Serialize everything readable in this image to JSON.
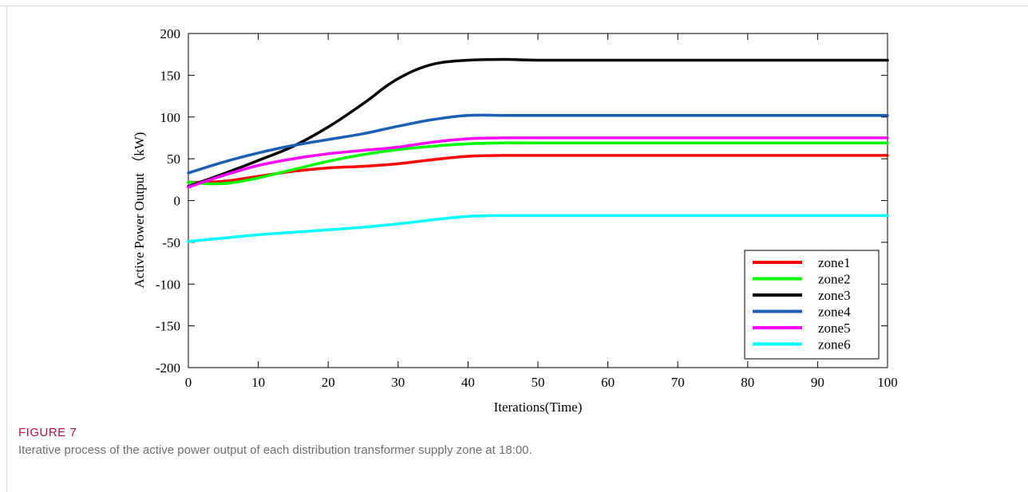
{
  "figure": {
    "label": "FIGURE 7",
    "caption": "Iterative process of the active power output of each distribution transformer supply zone at 18:00."
  },
  "chart_data": {
    "type": "line",
    "xlabel": "Iterations(Time)",
    "ylabel": "Active Power Output （kW)",
    "xlim": [
      0,
      100
    ],
    "ylim": [
      -200,
      200
    ],
    "xticks": [
      0,
      10,
      20,
      30,
      40,
      50,
      60,
      70,
      80,
      90,
      100
    ],
    "yticks": [
      200,
      150,
      100,
      50,
      0,
      -50,
      -100,
      -150,
      -200
    ],
    "grid": false,
    "legend_position": "bottom-right",
    "series": [
      {
        "name": "zone1",
        "color": "#ff0000",
        "x": [
          0,
          3,
          6,
          10,
          15,
          20,
          25,
          30,
          35,
          40,
          45,
          50,
          60,
          80,
          100
        ],
        "y": [
          22,
          22,
          24,
          29,
          35,
          39,
          41,
          44,
          49,
          53,
          54,
          54,
          54,
          54,
          54
        ]
      },
      {
        "name": "zone2",
        "color": "#00ff00",
        "x": [
          0,
          3,
          6,
          10,
          15,
          20,
          25,
          30,
          35,
          40,
          45,
          50,
          60,
          80,
          100
        ],
        "y": [
          22,
          20,
          21,
          27,
          37,
          47,
          55,
          61,
          65,
          68,
          69,
          69,
          69,
          69,
          69
        ]
      },
      {
        "name": "zone3",
        "color": "#000000",
        "x": [
          0,
          5,
          10,
          15,
          20,
          25,
          28,
          30,
          33,
          36,
          40,
          45,
          50,
          60,
          80,
          100
        ],
        "y": [
          17,
          32,
          48,
          65,
          88,
          116,
          135,
          146,
          158,
          165,
          168,
          169,
          168,
          168,
          168,
          168
        ]
      },
      {
        "name": "zone4",
        "color": "#1a5fb4",
        "x": [
          0,
          5,
          10,
          15,
          20,
          25,
          30,
          35,
          40,
          45,
          50,
          60,
          80,
          100
        ],
        "y": [
          33,
          46,
          57,
          66,
          73,
          80,
          89,
          97,
          102,
          102,
          102,
          102,
          102,
          102
        ]
      },
      {
        "name": "zone5",
        "color": "#ff00ff",
        "x": [
          0,
          5,
          10,
          15,
          20,
          25,
          30,
          35,
          40,
          45,
          50,
          60,
          80,
          100
        ],
        "y": [
          16,
          30,
          42,
          50,
          56,
          60,
          64,
          70,
          74,
          75,
          75,
          75,
          75,
          75
        ]
      },
      {
        "name": "zone6",
        "color": "#00ffff",
        "x": [
          0,
          5,
          10,
          15,
          20,
          25,
          30,
          35,
          40,
          45,
          50,
          60,
          80,
          100
        ],
        "y": [
          -49,
          -45,
          -41,
          -38,
          -35,
          -32,
          -28,
          -23,
          -19,
          -18,
          -18,
          -18,
          -18,
          -18
        ]
      }
    ]
  }
}
